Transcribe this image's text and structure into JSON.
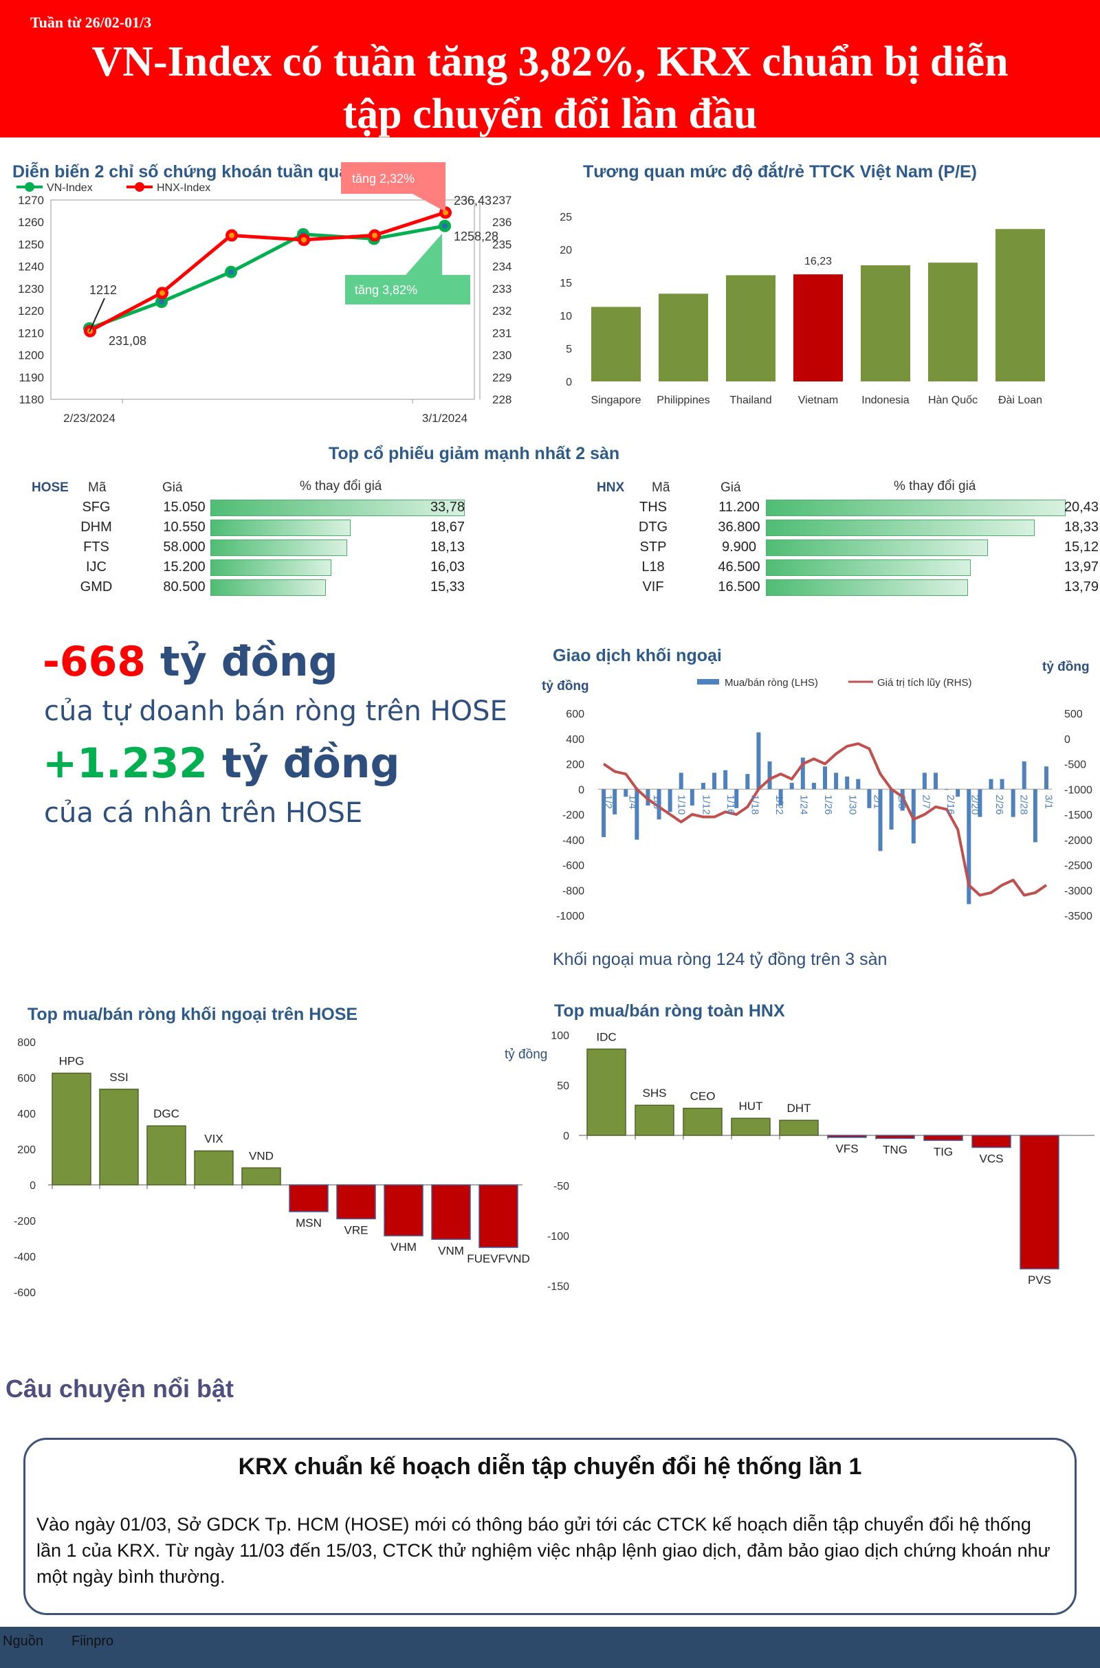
{
  "header": {
    "week": "Tuần từ 26/02-01/3",
    "title_line1": "VN-Index có tuần tăng 3,82%, KRX chuẩn bị diễn",
    "title_line2": "tập chuyển đổi lần đầu"
  },
  "colors": {
    "red": "#ff0000",
    "green": "#00b050",
    "bar_green": "#77933c",
    "bar_red": "#c00000",
    "navy": "#2e4f7e"
  },
  "chart_data": [
    {
      "id": "index_chart",
      "type": "line",
      "title": "Diễn biến 2 chỉ số chứng khoán tuần qua",
      "x_labels": [
        "2/23/2024",
        "3/1/2024"
      ],
      "x": [
        "2/23/2024",
        "2/26/2024",
        "2/27/2024",
        "2/28/2024",
        "2/29/2024",
        "3/1/2024"
      ],
      "series": [
        {
          "name": "VN-Index",
          "axis": "left",
          "color": "#00b050",
          "values": [
            1212,
            1224,
            1237.5,
            1254.5,
            1252.5,
            1258.28
          ]
        },
        {
          "name": "HNX-Index",
          "axis": "right",
          "color": "#ff0000",
          "values": [
            231.08,
            232.8,
            235.4,
            235.2,
            235.4,
            236.43
          ]
        }
      ],
      "ylim_left": [
        1180,
        1270
      ],
      "yticks_left": [
        "1270",
        "1260",
        "1250",
        "1240",
        "1230",
        "1220",
        "1210",
        "1200",
        "1190",
        "1180"
      ],
      "ylim_right": [
        228,
        237
      ],
      "yticks_right": [
        "237",
        "236",
        "235",
        "234",
        "233",
        "232",
        "231",
        "230",
        "229",
        "228"
      ],
      "labels": {
        "vn_start": "1212",
        "hnx_start": "231,08",
        "hnx_end": "236,43",
        "vn_end": "1258,28",
        "hnx_change": "tăng 2,32%",
        "vn_change": "tăng 3,82%"
      },
      "legend": "top-left"
    },
    {
      "id": "pe_chart",
      "type": "bar",
      "title": "Tương quan mức độ đắt/rẻ TTCK Việt Nam (P/E)",
      "categories": [
        "Singapore",
        "Philippines",
        "Thailand",
        "Vietnam",
        "Indonesia",
        "Hàn Quốc",
        "Đài Loan"
      ],
      "values": [
        11.3,
        13.3,
        16.1,
        16.23,
        17.6,
        18,
        23.1
      ],
      "highlight": "Vietnam",
      "highlight_label": "16,23",
      "ylim": [
        0,
        25
      ],
      "yticks": [
        "0",
        "5",
        "10",
        "15",
        "20",
        "25"
      ]
    },
    {
      "id": "top_losers",
      "type": "table",
      "title": "Top cổ phiếu giảm mạnh nhất 2 sàn",
      "headers": {
        "code": "Mã",
        "price": "Giá",
        "pct": "% thay đổi giá"
      },
      "hose": {
        "label": "HOSE",
        "rows": [
          {
            "code": "SFG",
            "price": "15.050",
            "pct": "33,78",
            "value": 33.78
          },
          {
            "code": "DHM",
            "price": "10.550",
            "pct": "18,67",
            "value": 18.67
          },
          {
            "code": "FTS",
            "price": "58.000",
            "pct": "18,13",
            "value": 18.13
          },
          {
            "code": "IJC",
            "price": "15.200",
            "pct": "16,03",
            "value": 16.03
          },
          {
            "code": "GMD",
            "price": "80.500",
            "pct": "15,33",
            "value": 15.33
          }
        ]
      },
      "hnx": {
        "label": "HNX",
        "rows": [
          {
            "code": "THS",
            "price": "11.200",
            "pct": "20,43",
            "value": 20.43
          },
          {
            "code": "DTG",
            "price": "36.800",
            "pct": "18,33",
            "value": 18.33
          },
          {
            "code": "STP",
            "price": "9.900",
            "pct": "15,12",
            "value": 15.12
          },
          {
            "code": "L18",
            "price": "46.500",
            "pct": "13,97",
            "value": 13.97
          },
          {
            "code": "VIF",
            "price": "16.500",
            "pct": "13,79",
            "value": 13.79
          }
        ]
      }
    },
    {
      "id": "foreign_chart",
      "type": "bar",
      "title": "Giao dịch khối ngoại",
      "ylabel_left": "tỷ đồng",
      "ylabel_right": "tỷ đồng",
      "x_labels": [
        "1/2",
        "1/4",
        "1/8",
        "1/10",
        "1/12",
        "1/16",
        "1/18",
        "1/22",
        "1/24",
        "1/26",
        "1/30",
        "2/1",
        "2/5",
        "2/7",
        "2/16",
        "2/20",
        "2/26",
        "2/28",
        "3/1"
      ],
      "series": [
        {
          "name": "Mua/bán ròng (LHS)",
          "type": "bar",
          "color": "#4f81bd",
          "values": [
            -380,
            -200,
            -60,
            -400,
            -130,
            -240,
            -180,
            130,
            -130,
            50,
            130,
            150,
            -150,
            120,
            450,
            220,
            -130,
            50,
            250,
            50,
            180,
            130,
            100,
            80,
            -150,
            -490,
            -320,
            -170,
            -430,
            130,
            130,
            0,
            -60,
            -910,
            -220,
            80,
            80,
            -220,
            220,
            -420,
            180
          ]
        },
        {
          "name": "Giá trị tích lũy (RHS)",
          "type": "line",
          "color": "#c0504d",
          "values": [
            -500,
            -650,
            -700,
            -1000,
            -1200,
            -1350,
            -1500,
            -1650,
            -1500,
            -1550,
            -1550,
            -1450,
            -1500,
            -1350,
            -1000,
            -800,
            -700,
            -800,
            -500,
            -400,
            -500,
            -300,
            -150,
            -100,
            -200,
            -700,
            -1000,
            -1150,
            -1600,
            -1500,
            -1350,
            -1400,
            -1800,
            -2900,
            -3100,
            -3050,
            -2900,
            -2800,
            -3100,
            -3050,
            -2900
          ]
        }
      ],
      "ylim_left": [
        -1000,
        600
      ],
      "yticks_left": [
        "600",
        "400",
        "200",
        "0",
        "-200",
        "-400",
        "-600",
        "-800",
        "-1000"
      ],
      "ylim_right": [
        -3500,
        500
      ],
      "yticks_right": [
        "500",
        "0",
        "-500",
        "-1000",
        "-1500",
        "-2000",
        "-2500",
        "-3000",
        "-3500"
      ],
      "note": "Khối ngoại mua ròng 124 tỷ đồng trên 3 sàn"
    },
    {
      "id": "hose_foreign",
      "type": "bar",
      "title": "Top mua/bán ròng khối ngoại trên HOSE",
      "categories": [
        "HPG",
        "SSI",
        "DGC",
        "VIX",
        "VND",
        "MSN",
        "VRE",
        "VHM",
        "VNM",
        "FUEVFVND"
      ],
      "values": [
        625,
        535,
        330,
        190,
        95,
        -150,
        -190,
        -285,
        -305,
        -350
      ],
      "ylim": [
        -600,
        800
      ],
      "yticks": [
        "800",
        "600",
        "400",
        "200",
        "0",
        "-200",
        "-400",
        "-600"
      ]
    },
    {
      "id": "hnx_foreign",
      "type": "bar",
      "title": "Top mua/bán ròng toàn HNX",
      "ylabel": "tỷ đồng",
      "categories": [
        "IDC",
        "SHS",
        "CEO",
        "HUT",
        "DHT",
        "VFS",
        "TNG",
        "TIG",
        "VCS",
        "PVS"
      ],
      "values": [
        86,
        30,
        27,
        17,
        15,
        -2,
        -3,
        -5,
        -12,
        -133
      ],
      "ylim": [
        -150,
        100
      ],
      "yticks": [
        "100",
        "50",
        "0",
        "-50",
        "-100",
        "-150"
      ]
    }
  ],
  "highlights": {
    "prop_value": "-668",
    "unit": "tỷ đồng",
    "prop_text": "của tự doanh bán ròng trên HOSE",
    "retail_value": "+1.232",
    "retail_text": "của cá nhân trên HOSE"
  },
  "story": {
    "heading": "Câu chuyện nổi bật",
    "title": "KRX chuẩn kế hoạch diễn tập chuyển đổi hệ thống lần 1",
    "body": "Vào ngày 01/03, Sở GDCK Tp. HCM (HOSE) mới có thông báo gửi tới các CTCK kế hoạch diễn tập chuyển đổi hệ thống lần 1 của KRX. Từ ngày 11/03 đến 15/03, CTCK thử nghiệm việc nhập lệnh giao dịch, đảm bảo giao dịch chứng khoán như một ngày bình thường."
  },
  "footer": {
    "source_label": "Nguồn",
    "source": "Fiinpro"
  }
}
